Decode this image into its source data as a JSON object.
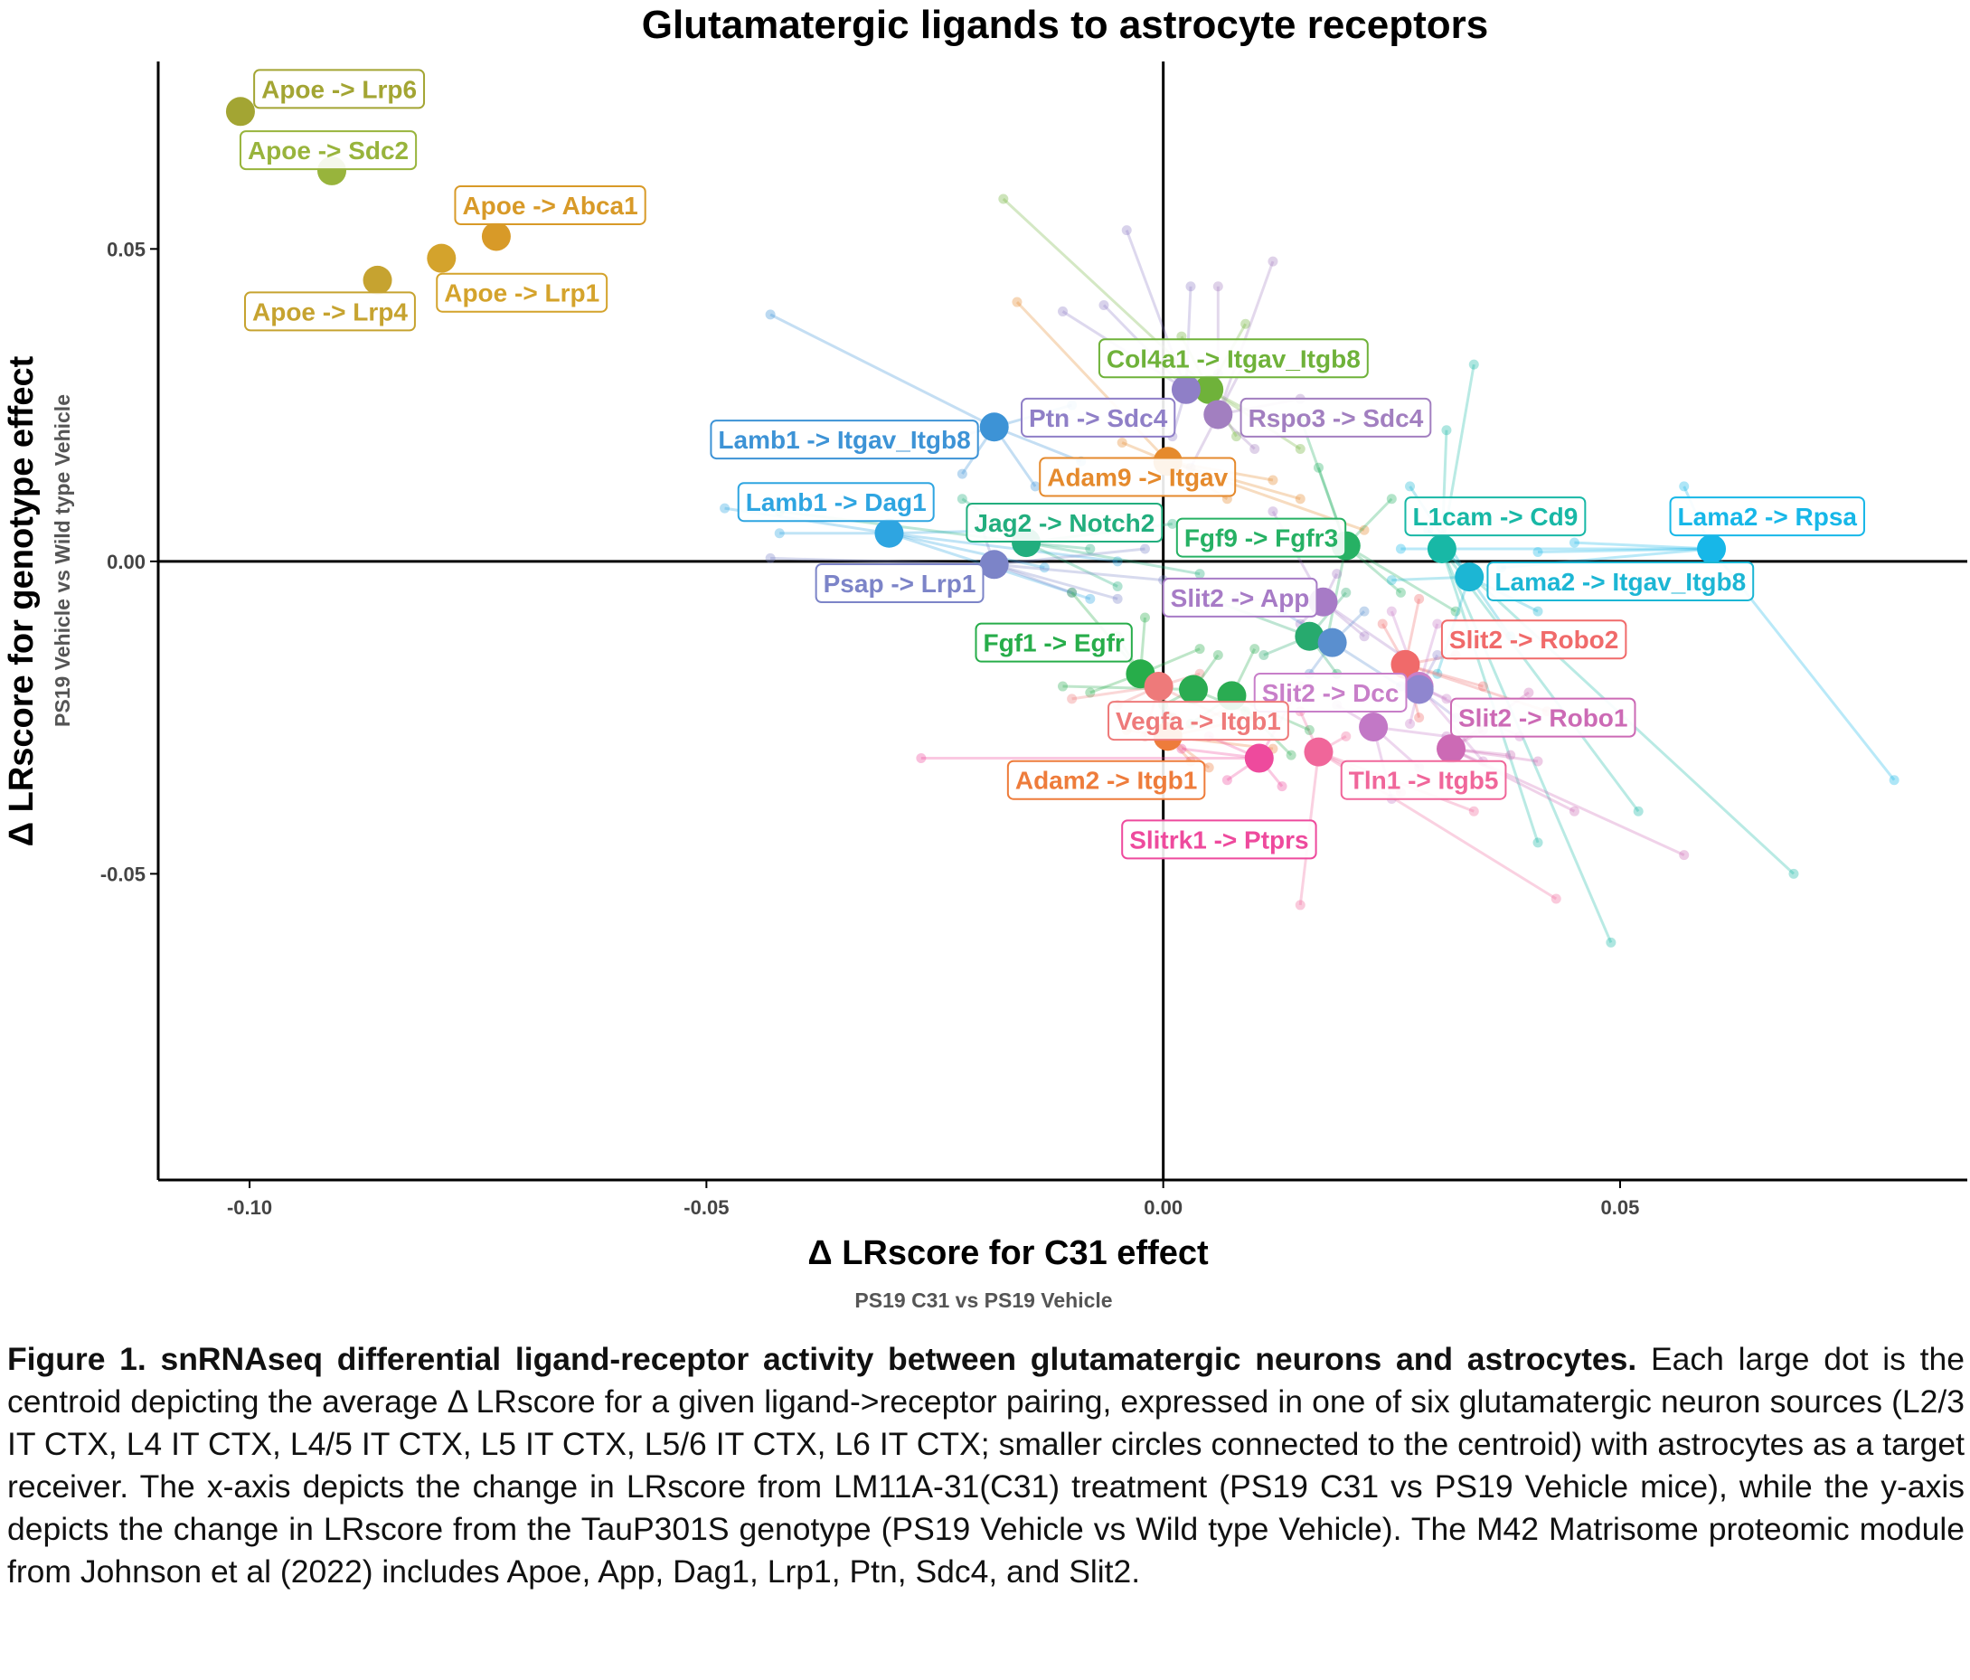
{
  "chart_data": {
    "type": "scatter",
    "title": "Glutamatergic ligands to astrocyte receptors",
    "xlabel": "Δ LRscore for C31 effect",
    "xsublabel": "PS19 C31 vs PS19 Vehicle",
    "ylabel": "Δ LRscore for genotype effect",
    "ysublabel": "PS19 Vehicle vs Wild type Vehicle",
    "xlim": [
      -0.11,
      0.088
    ],
    "ylim": [
      -0.099,
      0.08
    ],
    "xticks": [
      -0.1,
      -0.05,
      0.0,
      0.05
    ],
    "xtick_labels": [
      "-0.10",
      "-0.05",
      "0.00",
      "0.05"
    ],
    "yticks": [
      -0.05,
      0.0,
      0.05
    ],
    "ytick_labels": [
      "-0.05",
      "0.00",
      "0.05"
    ],
    "reference_lines": {
      "x": 0,
      "y": 0
    },
    "grid": false,
    "legend": "none",
    "points": [
      {
        "label": "Apoe -> Lrp6",
        "x": -0.101,
        "y": 0.072,
        "color": "#a3a533",
        "lx": -0.0995,
        "ly": 0.0756,
        "sources": [],
        "label_color": "#b39b1c"
      },
      {
        "label": "Apoe -> Sdc2",
        "x": -0.091,
        "y": 0.0625,
        "color": "#98b43c",
        "lx": -0.101,
        "ly": 0.0658,
        "sources": []
      },
      {
        "label": "Apoe -> Abca1",
        "x": -0.073,
        "y": 0.052,
        "color": "#d89a28",
        "lx": -0.0775,
        "ly": 0.057,
        "sources": []
      },
      {
        "label": "Apoe -> Lrp1",
        "x": -0.079,
        "y": 0.0485,
        "color": "#d4a32c",
        "lx": -0.0795,
        "ly": 0.043,
        "sources": []
      },
      {
        "label": "Apoe -> Lrp4",
        "x": -0.086,
        "y": 0.045,
        "color": "#c6a330",
        "lx": -0.1005,
        "ly": 0.04,
        "sources": []
      },
      {
        "label": "Col4a1 -> Itgav_Itgb8",
        "x": 0.005,
        "y": 0.0275,
        "color": "#6fb23a",
        "lx": -0.007,
        "ly": 0.0325,
        "sources": [
          [
            -0.0175,
            0.058
          ],
          [
            0.009,
            0.038
          ],
          [
            0.012,
            0.022
          ],
          [
            0.015,
            0.018
          ],
          [
            0.002,
            0.036
          ],
          [
            0.008,
            0.02
          ]
        ]
      },
      {
        "label": "Ptn -> Sdc4",
        "x": 0.0025,
        "y": 0.0275,
        "color": "#8f7fc7",
        "lx": -0.0155,
        "ly": 0.023,
        "sources": [
          [
            -0.004,
            0.053
          ],
          [
            -0.0065,
            0.041
          ],
          [
            -0.011,
            0.04
          ],
          [
            0.003,
            0.044
          ],
          [
            0.006,
            0.03
          ],
          [
            0.001,
            0.02
          ]
        ]
      },
      {
        "label": "Rspo3 -> Sdc4",
        "x": 0.006,
        "y": 0.0235,
        "color": "#a27fc0",
        "lx": 0.0085,
        "ly": 0.023,
        "sources": [
          [
            0.012,
            0.048
          ],
          [
            0.006,
            0.044
          ],
          [
            0.009,
            0.032
          ],
          [
            0.01,
            0.018
          ],
          [
            0.003,
            0.015
          ],
          [
            0.015,
            0.026
          ]
        ]
      },
      {
        "label": "Lamb1 -> Itgav_Itgb8",
        "x": -0.0185,
        "y": 0.0215,
        "color": "#3d93d6",
        "lx": -0.0495,
        "ly": 0.0195,
        "sources": [
          [
            -0.043,
            0.0395
          ],
          [
            -0.025,
            0.019
          ],
          [
            -0.022,
            0.014
          ],
          [
            -0.014,
            0.012
          ],
          [
            -0.01,
            0.025
          ],
          [
            -0.009,
            0.016
          ]
        ]
      },
      {
        "label": "Adam9 -> Itgav",
        "x": 0.0005,
        "y": 0.016,
        "color": "#e58a2d",
        "lx": -0.0135,
        "ly": 0.0135,
        "sources": [
          [
            -0.016,
            0.0415
          ],
          [
            -0.0045,
            0.019
          ],
          [
            0.015,
            0.01
          ],
          [
            0.022,
            0.005
          ],
          [
            0.007,
            0.01
          ],
          [
            0.012,
            0.013
          ]
        ]
      },
      {
        "label": "Lamb1 -> Dag1",
        "x": -0.03,
        "y": 0.0045,
        "color": "#2ea5e1",
        "lx": -0.0465,
        "ly": 0.0095,
        "sources": [
          [
            -0.048,
            0.0085
          ],
          [
            -0.042,
            0.0045
          ],
          [
            -0.013,
            -0.001
          ],
          [
            -0.008,
            -0.006
          ],
          [
            -0.005,
            0.0
          ],
          [
            -0.015,
            0.005
          ]
        ]
      },
      {
        "label": "Jag2 -> Notch2",
        "x": -0.015,
        "y": 0.003,
        "color": "#22ae7e",
        "lx": -0.0215,
        "ly": 0.0062,
        "sources": [
          [
            -0.042,
            0.008
          ],
          [
            -0.022,
            0.01
          ],
          [
            -0.005,
            -0.004
          ],
          [
            0.001,
            0.006
          ],
          [
            -0.008,
            0.002
          ],
          [
            0.004,
            -0.002
          ]
        ]
      },
      {
        "label": "Psap -> Lrp1",
        "x": -0.0185,
        "y": -0.0005,
        "color": "#7c84c8",
        "lx": -0.038,
        "ly": -0.0035,
        "sources": [
          [
            -0.043,
            0.0005
          ],
          [
            -0.02,
            0.006
          ],
          [
            -0.005,
            -0.006
          ],
          [
            -0.002,
            0.002
          ],
          [
            -0.01,
            -0.005
          ],
          [
            0.0,
            -0.003
          ]
        ]
      },
      {
        "label": "Fgf9 -> Fgfr3",
        "x": 0.02,
        "y": 0.0025,
        "color": "#26b164",
        "lx": 0.0015,
        "ly": 0.0038,
        "sources": [
          [
            0.015,
            0.023
          ],
          [
            0.017,
            0.015
          ],
          [
            0.026,
            -0.005
          ],
          [
            0.032,
            -0.008
          ],
          [
            0.018,
            -0.012
          ],
          [
            0.025,
            0.01
          ]
        ]
      },
      {
        "label": "L1cam -> Cd9",
        "x": 0.0305,
        "y": 0.002,
        "color": "#18b8a6",
        "lx": 0.0265,
        "ly": 0.0072,
        "sources": [
          [
            0.034,
            0.0315
          ],
          [
            0.031,
            0.021
          ],
          [
            0.041,
            -0.045
          ],
          [
            0.049,
            -0.061
          ],
          [
            0.052,
            -0.04
          ],
          [
            0.069,
            -0.05
          ]
        ]
      },
      {
        "label": "Lama2 -> Rpsa",
        "x": 0.06,
        "y": 0.002,
        "color": "#17b7e8",
        "lx": 0.0555,
        "ly": 0.0072,
        "sources": [
          [
            0.057,
            0.012
          ],
          [
            0.041,
            0.0015
          ],
          [
            0.08,
            -0.035
          ],
          [
            0.026,
            0.002
          ],
          [
            0.045,
            0.003
          ],
          [
            0.037,
            -0.001
          ]
        ]
      },
      {
        "label": "Lama2 -> Itgav_Itgb8",
        "x": 0.0335,
        "y": -0.0025,
        "color": "#1cb6d4",
        "lx": 0.0355,
        "ly": -0.0032,
        "sources": [
          [
            0.027,
            0.012
          ],
          [
            0.025,
            -0.003
          ],
          [
            0.041,
            -0.008
          ],
          [
            0.03,
            -0.018
          ],
          [
            0.038,
            -0.012
          ],
          [
            0.029,
            0.005
          ]
        ]
      },
      {
        "label": "Slit2 -> App",
        "x": 0.0175,
        "y": -0.0065,
        "color": "#a77bc6",
        "lx": 0.0,
        "ly": -0.0058,
        "sources": [
          [
            0.012,
            0.008
          ],
          [
            0.008,
            -0.006
          ],
          [
            0.022,
            -0.012
          ],
          [
            0.026,
            -0.015
          ],
          [
            0.019,
            -0.002
          ],
          [
            0.015,
            -0.01
          ]
        ]
      },
      {
        "label": "Fgf1 -> Egfr",
        "x": -0.0025,
        "y": -0.018,
        "color": "#27ad4a",
        "lx": -0.0205,
        "ly": -0.013,
        "sources": [
          [
            -0.01,
            -0.005
          ],
          [
            -0.005,
            -0.012
          ],
          [
            -0.008,
            -0.021
          ],
          [
            0.004,
            -0.014
          ],
          [
            0.001,
            -0.025
          ],
          [
            -0.002,
            -0.009
          ]
        ]
      },
      {
        "label": "Slit2 -> Robo2",
        "x": 0.0265,
        "y": -0.0165,
        "color": "#f06a6a",
        "lx": 0.0305,
        "ly": -0.0125,
        "sources": [
          [
            0.028,
            -0.006
          ],
          [
            0.024,
            -0.01
          ],
          [
            0.035,
            -0.02
          ],
          [
            0.028,
            -0.025
          ],
          [
            0.042,
            -0.024
          ],
          [
            0.032,
            -0.015
          ]
        ]
      },
      {
        "label": "Slit2 -> Dcc",
        "x": 0.028,
        "y": -0.02,
        "color": "#c87fc9",
        "lx": 0.01,
        "ly": -0.021,
        "sources": [
          [
            0.025,
            -0.008
          ],
          [
            0.03,
            -0.01
          ],
          [
            0.035,
            -0.032
          ],
          [
            0.039,
            -0.028
          ],
          [
            0.027,
            -0.026
          ],
          [
            0.031,
            -0.022
          ]
        ]
      },
      {
        "label": "Slit2 -> Robo1",
        "x": 0.0315,
        "y": -0.03,
        "color": "#cc6ab5",
        "lx": 0.0315,
        "ly": -0.025,
        "sources": [
          [
            0.04,
            -0.021
          ],
          [
            0.038,
            -0.031
          ],
          [
            0.045,
            -0.04
          ],
          [
            0.057,
            -0.047
          ],
          [
            0.041,
            -0.032
          ],
          [
            0.035,
            -0.027
          ]
        ]
      },
      {
        "label": "Vegfa -> Itgb1",
        "x": -0.0005,
        "y": -0.02,
        "color": "#ee7a7a",
        "lx": -0.006,
        "ly": -0.0255,
        "sources": [
          [
            -0.01,
            -0.022
          ],
          [
            -0.002,
            -0.028
          ],
          [
            0.004,
            -0.018
          ],
          [
            0.001,
            -0.025
          ],
          [
            0.008,
            -0.026
          ],
          [
            -0.005,
            -0.023
          ]
        ]
      },
      {
        "label": "Adam2 -> Itgb1",
        "x": 0.0005,
        "y": -0.028,
        "color": "#ee7c3b",
        "lx": -0.017,
        "ly": -0.035,
        "sources": [
          [
            0.01,
            -0.025
          ],
          [
            0.005,
            -0.033
          ],
          [
            0.012,
            -0.03
          ],
          [
            -0.004,
            -0.027
          ],
          [
            0.008,
            -0.023
          ],
          [
            0.003,
            -0.032
          ]
        ]
      },
      {
        "label": "Tln1 -> Itgb5",
        "x": 0.017,
        "y": -0.0305,
        "color": "#f0669a",
        "lx": 0.0195,
        "ly": -0.035,
        "sources": [
          [
            0.015,
            -0.024
          ],
          [
            0.02,
            -0.028
          ],
          [
            0.015,
            -0.055
          ],
          [
            0.043,
            -0.054
          ],
          [
            0.026,
            -0.037
          ],
          [
            0.034,
            -0.04
          ]
        ]
      },
      {
        "label": "Slitrk1 -> Ptprs",
        "x": 0.0105,
        "y": -0.0315,
        "color": "#ee4a9d",
        "lx": -0.0045,
        "ly": -0.0445,
        "sources": [
          [
            -0.0265,
            -0.0315
          ],
          [
            0.005,
            -0.028
          ],
          [
            0.015,
            -0.02
          ],
          [
            0.007,
            -0.035
          ],
          [
            0.013,
            -0.036
          ],
          [
            0.002,
            -0.03
          ]
        ]
      },
      {
        "label": "",
        "x": 0.016,
        "y": -0.012,
        "color": "#27aa6e",
        "sources": [
          [
            0.005,
            -0.006
          ],
          [
            0.011,
            -0.015
          ],
          [
            0.02,
            -0.005
          ],
          [
            0.019,
            -0.018
          ]
        ]
      },
      {
        "label": "",
        "x": 0.0185,
        "y": -0.013,
        "color": "#5a8fcf",
        "sources": [
          [
            0.022,
            -0.008
          ],
          [
            0.016,
            -0.018
          ],
          [
            0.026,
            -0.02
          ],
          [
            0.013,
            -0.008
          ]
        ]
      },
      {
        "label": "",
        "x": 0.0033,
        "y": -0.0205,
        "color": "#2aac52",
        "sources": [
          [
            -0.011,
            -0.02
          ],
          [
            0.0,
            -0.023
          ],
          [
            0.009,
            -0.024
          ],
          [
            0.006,
            -0.015
          ]
        ]
      },
      {
        "label": "",
        "x": 0.0075,
        "y": -0.0215,
        "color": "#2aac52",
        "sources": [
          [
            0.014,
            -0.031
          ],
          [
            0.003,
            -0.026
          ],
          [
            0.01,
            -0.014
          ],
          [
            0.016,
            -0.027
          ]
        ]
      },
      {
        "label": "",
        "x": 0.023,
        "y": -0.0265,
        "color": "#c278c6",
        "sources": [
          [
            0.028,
            -0.033
          ],
          [
            0.019,
            -0.023
          ],
          [
            0.031,
            -0.028
          ],
          [
            0.025,
            -0.038
          ]
        ]
      },
      {
        "label": "",
        "x": 0.028,
        "y": -0.0205,
        "color": "#8f86cf",
        "sources": [
          [
            0.03,
            -0.015
          ],
          [
            0.032,
            -0.025
          ]
        ]
      }
    ],
    "label_colors": {
      "Apoe -> Lrp6": "#b0a227"
    }
  },
  "caption": {
    "bold": "Figure 1. snRNAseq differential ligand-receptor activity between glutamatergic neurons and astrocytes.",
    "text": " Each large dot is the centroid depicting the average Δ LRscore for a given ligand->receptor pairing, expressed in one of six glutamatergic neuron sources (L2/3 IT CTX, L4 IT CTX, L4/5 IT CTX, L5 IT CTX, L5/6 IT CTX, L6 IT CTX; smaller circles connected to the centroid) with astrocytes as a target receiver. The x-axis depicts the change in LRscore from LM11A-31(C31) treatment (PS19 C31 vs PS19 Vehicle mice), while the y-axis depicts the change in LRscore from the TauP301S genotype (PS19 Vehicle vs Wild type Vehicle). The M42 Matrisome proteomic module from Johnson et al (2022) includes Apoe, App, Dag1, Lrp1, Ptn, Sdc4, and Slit2."
  }
}
